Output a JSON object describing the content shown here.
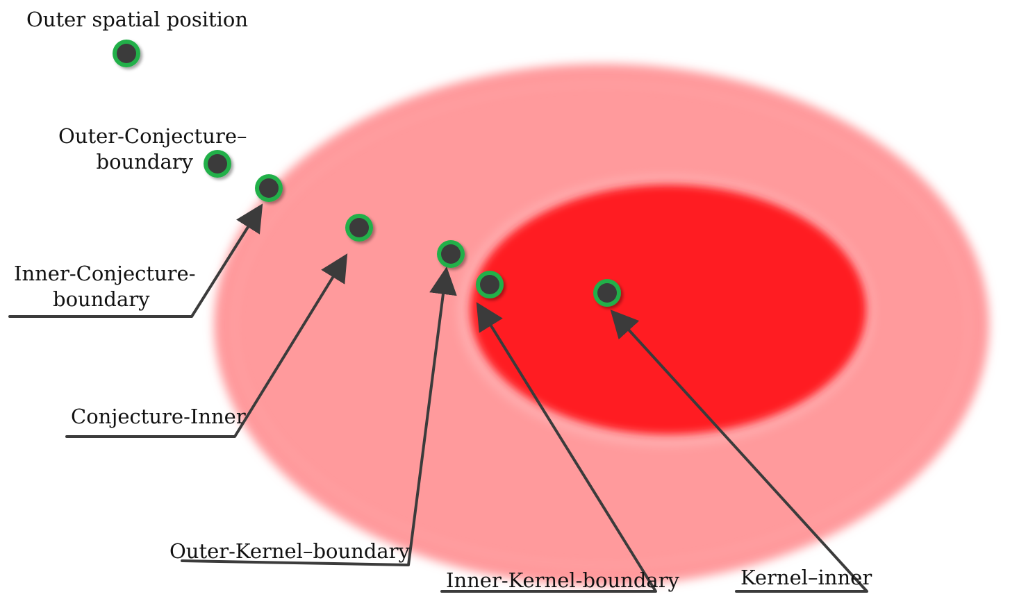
{
  "labels": {
    "outer_spatial_position": "Outer spatial position",
    "outer_conjecture_boundary": {
      "line1": "Outer-Conjecture–",
      "line2": "boundary"
    },
    "inner_conjecture_boundary": {
      "line1": "Inner-Conjecture-",
      "line2": "boundary"
    },
    "conjecture_inner": "Conjecture-Inner",
    "outer_kernel_boundary": "Outer-Kernel–boundary",
    "inner_kernel_boundary": "Inner-Kernel-boundary",
    "kernel_inner": "Kernel–inner"
  },
  "colors": {
    "conjecture_region": "#ff9a9c",
    "kernel_region": "#ff1f22",
    "point_fill": "#3a3a3a",
    "point_ring": "#22b04a",
    "leader_line": "#3b3b3b"
  }
}
